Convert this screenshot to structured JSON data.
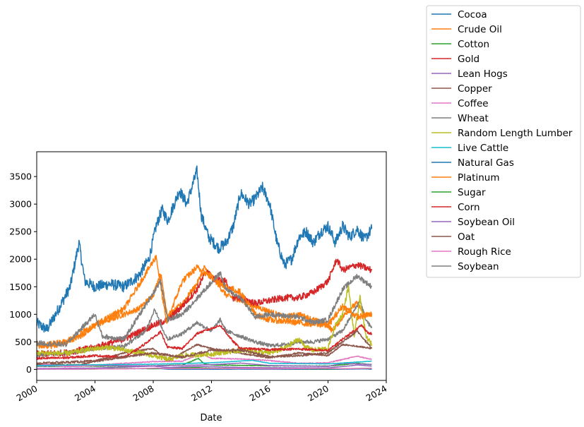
{
  "chart_data": {
    "type": "line",
    "xlabel": "Date",
    "ylabel": "",
    "xlim": [
      2000,
      2024
    ],
    "ylim": [
      -200,
      3950
    ],
    "x_ticks": [
      2000,
      2004,
      2008,
      2012,
      2016,
      2020,
      2024
    ],
    "x_tick_labels": [
      "2000",
      "2004",
      "2008",
      "2012",
      "2016",
      "2020",
      "2024"
    ],
    "y_ticks": [
      0,
      500,
      1000,
      1500,
      2000,
      2500,
      3000,
      3500
    ],
    "y_tick_labels": [
      "0",
      "500",
      "1000",
      "1500",
      "2000",
      "2500",
      "3000",
      "3500"
    ],
    "grid": false,
    "legend_position": "outside upper-right",
    "series": [
      {
        "name": "Cocoa",
        "color": "#1f77b4",
        "x": [
          2000,
          2000.7,
          2001.5,
          2002.3,
          2002.9,
          2003.3,
          2004,
          2005,
          2006,
          2007,
          2007.7,
          2008.2,
          2008.6,
          2009,
          2009.8,
          2010.3,
          2011.0,
          2011.3,
          2011.8,
          2012.5,
          2013,
          2013.5,
          2014,
          2014.6,
          2015,
          2015.5,
          2016,
          2016.5,
          2017,
          2017.5,
          2018,
          2018.5,
          2019,
          2019.5,
          2020,
          2020.5,
          2021,
          2021.5,
          2022,
          2022.5,
          2023
        ],
        "values": [
          840,
          720,
          1100,
          1500,
          2300,
          1600,
          1500,
          1550,
          1500,
          1700,
          2000,
          2600,
          2900,
          2700,
          3250,
          3000,
          3600,
          2800,
          2400,
          2200,
          2300,
          2600,
          3200,
          3000,
          3100,
          3300,
          3000,
          2300,
          1900,
          2000,
          2400,
          2500,
          2300,
          2500,
          2600,
          2300,
          2600,
          2400,
          2550,
          2350,
          2550
        ]
      },
      {
        "name": "Crude Oil",
        "color": "#ff7f0e",
        "x": [
          2000,
          2001,
          2002,
          2003,
          2004,
          2005,
          2006,
          2007,
          2008,
          2008.5,
          2009,
          2010,
          2011,
          2011.5,
          2012,
          2013,
          2014,
          2015,
          2016,
          2017,
          2018,
          2019,
          2020,
          2020.3,
          2021,
          2021.5,
          2022,
          2022.5,
          2023
        ],
        "values": [
          450,
          420,
          500,
          600,
          800,
          900,
          1000,
          1100,
          1350,
          1750,
          950,
          1200,
          1550,
          1850,
          1700,
          1350,
          1250,
          1150,
          1050,
          950,
          1000,
          900,
          800,
          700,
          950,
          1100,
          1200,
          1000,
          1000
        ]
      },
      {
        "name": "Cotton",
        "color": "#2ca02c",
        "x": [
          2000,
          2004,
          2008,
          2010,
          2011.1,
          2011.5,
          2012,
          2016,
          2020,
          2022,
          2023
        ],
        "values": [
          55,
          60,
          65,
          80,
          200,
          100,
          80,
          65,
          60,
          110,
          85
        ]
      },
      {
        "name": "Gold",
        "color": "#d62728",
        "x": [
          2000,
          2002,
          2004,
          2006,
          2008,
          2009,
          2010,
          2011,
          2011.7,
          2012,
          2013,
          2013.5,
          2014,
          2015,
          2016,
          2017,
          2018,
          2019,
          2020,
          2020.6,
          2021,
          2022,
          2023
        ],
        "values": [
          280,
          300,
          400,
          550,
          800,
          900,
          1150,
          1450,
          1800,
          1650,
          1600,
          1300,
          1300,
          1200,
          1250,
          1300,
          1300,
          1400,
          1600,
          2000,
          1800,
          1900,
          1800
        ]
      },
      {
        "name": "Lean Hogs",
        "color": "#9467bd",
        "x": [
          2000,
          2004,
          2008,
          2012,
          2014,
          2016,
          2020,
          2021,
          2023
        ],
        "values": [
          60,
          70,
          65,
          85,
          115,
          70,
          55,
          110,
          90
        ]
      },
      {
        "name": "Copper",
        "color": "#8c564b",
        "x": [
          2000,
          2003,
          2006,
          2008,
          2009,
          2011,
          2012,
          2015,
          2016,
          2018,
          2020,
          2021,
          2022,
          2023
        ],
        "values": [
          90,
          80,
          300,
          380,
          150,
          450,
          380,
          250,
          210,
          300,
          250,
          450,
          420,
          380
        ]
      },
      {
        "name": "Coffee",
        "color": "#e377c2",
        "x": [
          2000,
          2002,
          2004,
          2006,
          2008,
          2010,
          2011.3,
          2012,
          2014,
          2016,
          2018,
          2020,
          2021,
          2022,
          2023
        ],
        "values": [
          110,
          50,
          75,
          110,
          140,
          150,
          290,
          200,
          190,
          160,
          110,
          120,
          180,
          240,
          180
        ]
      },
      {
        "name": "Wheat",
        "color": "#7f7f7f",
        "x": [
          2000,
          2002,
          2004,
          2006,
          2007.5,
          2008.1,
          2008.6,
          2009,
          2010,
          2011,
          2012,
          2012.6,
          2013,
          2014,
          2015,
          2016,
          2017,
          2018,
          2019,
          2020,
          2021,
          2022.2,
          2022.6,
          2023
        ],
        "values": [
          260,
          300,
          380,
          420,
          700,
          1100,
          750,
          550,
          650,
          850,
          700,
          900,
          700,
          600,
          500,
          430,
          450,
          500,
          500,
          550,
          700,
          1250,
          900,
          750
        ]
      },
      {
        "name": "Random Length Lumber",
        "color": "#bcbd22",
        "x": [
          2000,
          2002,
          2004,
          2005,
          2006,
          2008,
          2009,
          2010,
          2012,
          2014,
          2016,
          2017,
          2018,
          2018.5,
          2019,
          2020,
          2020.5,
          2021,
          2021.4,
          2021.8,
          2022.2,
          2022.6,
          2023
        ],
        "values": [
          300,
          290,
          380,
          400,
          350,
          250,
          180,
          250,
          280,
          350,
          300,
          380,
          550,
          400,
          350,
          380,
          800,
          1000,
          1500,
          600,
          1300,
          600,
          450
        ]
      },
      {
        "name": "Live Cattle",
        "color": "#17becf",
        "x": [
          2000,
          2004,
          2008,
          2012,
          2014.8,
          2016,
          2020,
          2023
        ],
        "values": [
          70,
          85,
          95,
          120,
          165,
          110,
          100,
          150
        ]
      },
      {
        "name": "Natural Gas",
        "color": "#1f77b4",
        "x": [
          2000,
          2001,
          2003,
          2005.8,
          2008.5,
          2009,
          2012,
          2014,
          2016,
          2020,
          2022.5,
          2023
        ],
        "values": [
          3,
          5,
          6,
          14,
          13,
          4,
          2,
          5,
          2,
          2,
          9,
          3
        ]
      },
      {
        "name": "Platinum",
        "color": "#ff7f0e",
        "x": [
          2000,
          2002,
          2004,
          2006,
          2008.2,
          2008.9,
          2010,
          2011,
          2013,
          2014,
          2015,
          2016,
          2018,
          2020,
          2021,
          2022,
          2023
        ],
        "values": [
          420,
          500,
          800,
          1100,
          2050,
          850,
          1600,
          1850,
          1500,
          1400,
          1000,
          900,
          850,
          800,
          1150,
          950,
          1000
        ]
      },
      {
        "name": "Sugar",
        "color": "#2ca02c",
        "x": [
          2000,
          2004,
          2006,
          2008,
          2009.9,
          2011.1,
          2012,
          2016,
          2020,
          2023
        ],
        "values": [
          7,
          6,
          17,
          12,
          30,
          32,
          20,
          14,
          10,
          20
        ]
      },
      {
        "name": "Corn",
        "color": "#d62728",
        "x": [
          2000,
          2002,
          2004,
          2006,
          2007,
          2008.5,
          2009,
          2010,
          2011,
          2012.6,
          2013.5,
          2014,
          2016,
          2018,
          2020,
          2021,
          2022.3,
          2022.8,
          2023
        ],
        "values": [
          200,
          210,
          250,
          220,
          380,
          680,
          400,
          380,
          650,
          800,
          500,
          380,
          360,
          370,
          340,
          550,
          800,
          650,
          650
        ]
      },
      {
        "name": "Soybean Oil",
        "color": "#9467bd",
        "x": [
          2000,
          2004,
          2008,
          2009,
          2011,
          2014,
          2016,
          2020,
          2021.5,
          2022,
          2023
        ],
        "values": [
          16,
          25,
          60,
          35,
          55,
          35,
          30,
          28,
          65,
          80,
          60
        ]
      },
      {
        "name": "Oat",
        "color": "#8c564b",
        "x": [
          2000,
          2004,
          2008,
          2010,
          2012,
          2014,
          2016,
          2018,
          2020,
          2021,
          2022,
          2023
        ],
        "values": [
          110,
          150,
          300,
          220,
          350,
          350,
          230,
          250,
          300,
          500,
          700,
          380
        ]
      },
      {
        "name": "Rough Rice",
        "color": "#e377c2",
        "x": [
          2000,
          2002,
          2004,
          2006,
          2008.3,
          2009,
          2012,
          2014,
          2016,
          2020,
          2021,
          2023
        ],
        "values": [
          6,
          5,
          8,
          9,
          24,
          15,
          15,
          16,
          10,
          20,
          13,
          17
        ]
      },
      {
        "name": "Soybean",
        "color": "#7f7f7f",
        "x": [
          2000,
          2002,
          2004,
          2004.5,
          2006,
          2008.5,
          2009,
          2010,
          2012.6,
          2013,
          2014,
          2015,
          2016,
          2018,
          2019,
          2020,
          2021,
          2022,
          2023
        ],
        "values": [
          480,
          450,
          1000,
          600,
          550,
          1600,
          900,
          1000,
          1750,
          1450,
          1300,
          950,
          1000,
          950,
          850,
          900,
          1450,
          1700,
          1500
        ]
      }
    ]
  }
}
